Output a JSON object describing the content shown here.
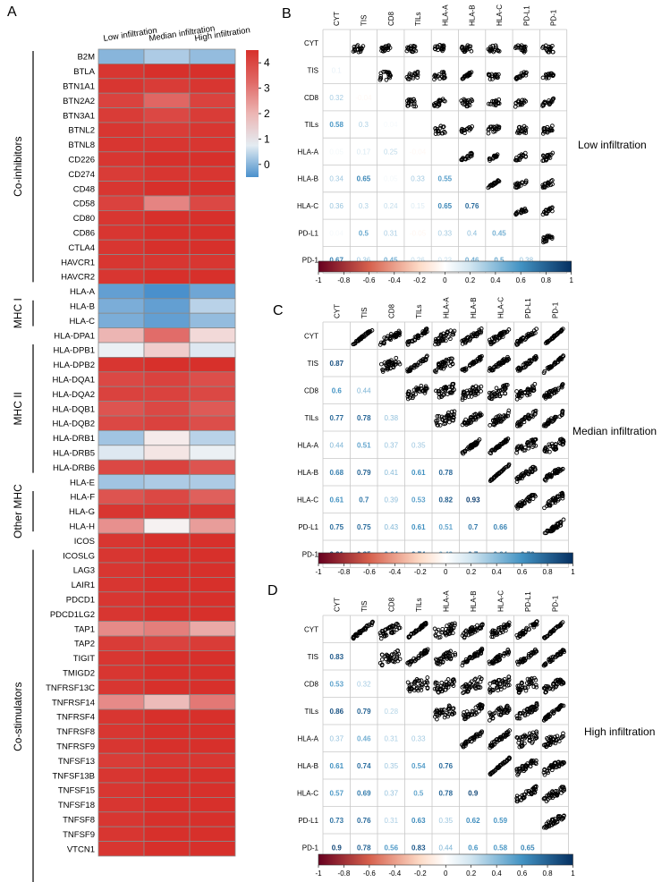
{
  "colors": {
    "negative": "#67001f",
    "neutral": "#ffffff",
    "positive": "#053061",
    "heat_low": "#4a90cc",
    "heat_mid": "#f7f7f7",
    "heat_high": "#d7302b",
    "points": "#000000"
  },
  "chart_data": [
    {
      "panel": "A",
      "type": "heatmap",
      "columns": [
        "Low infiltration",
        "Median infiltration",
        "High infiltration"
      ],
      "colorbar": {
        "ticks": [
          4,
          3,
          2,
          1,
          0
        ],
        "range": [
          -0.5,
          4.5
        ]
      },
      "groups": [
        {
          "label": "Co-inhibitors",
          "start": 0,
          "end": 16
        },
        {
          "label": "MHC I",
          "start": 17,
          "end": 19
        },
        {
          "label": "MHC II",
          "start": 20,
          "end": 29
        },
        {
          "label": "Other MHC",
          "start": 30,
          "end": 33
        },
        {
          "label": "Co-stimulators",
          "start": 34,
          "end": 57
        }
      ],
      "rows": [
        {
          "gene": "B2M",
          "values": [
            0.0,
            0.3,
            0.1
          ]
        },
        {
          "gene": "BTLA",
          "values": [
            4.1,
            4.2,
            4.2
          ]
        },
        {
          "gene": "BTN1A1",
          "values": [
            4.1,
            4.0,
            4.1
          ]
        },
        {
          "gene": "BTN2A2",
          "values": [
            3.9,
            3.3,
            3.9
          ]
        },
        {
          "gene": "BTN3A1",
          "values": [
            4.0,
            3.8,
            4.0
          ]
        },
        {
          "gene": "BTNL2",
          "values": [
            4.1,
            4.0,
            4.1
          ]
        },
        {
          "gene": "BTNL8",
          "values": [
            4.1,
            4.1,
            4.1
          ]
        },
        {
          "gene": "CD226",
          "values": [
            4.1,
            4.2,
            4.2
          ]
        },
        {
          "gene": "CD274",
          "values": [
            4.0,
            4.1,
            4.1
          ]
        },
        {
          "gene": "CD48",
          "values": [
            4.1,
            4.2,
            4.2
          ]
        },
        {
          "gene": "CD58",
          "values": [
            3.9,
            2.8,
            3.8
          ]
        },
        {
          "gene": "CD80",
          "values": [
            4.1,
            4.2,
            4.2
          ]
        },
        {
          "gene": "CD86",
          "values": [
            4.1,
            4.2,
            4.2
          ]
        },
        {
          "gene": "CTLA4",
          "values": [
            4.1,
            4.2,
            4.2
          ]
        },
        {
          "gene": "HAVCR1",
          "values": [
            4.1,
            4.1,
            4.1
          ]
        },
        {
          "gene": "HAVCR2",
          "values": [
            4.1,
            4.2,
            4.2
          ]
        },
        {
          "gene": "HLA-A",
          "values": [
            -0.3,
            -0.5,
            -0.2
          ]
        },
        {
          "gene": "HLA-B",
          "values": [
            -0.1,
            -0.3,
            0.4
          ]
        },
        {
          "gene": "HLA-C",
          "values": [
            -0.1,
            -0.3,
            0.1
          ]
        },
        {
          "gene": "HLA-DPA1",
          "values": [
            2.0,
            3.2,
            1.4
          ]
        },
        {
          "gene": "HLA-DPB1",
          "values": [
            0.8,
            1.6,
            0.7
          ]
        },
        {
          "gene": "HLA-DPB2",
          "values": [
            4.1,
            4.2,
            4.2
          ]
        },
        {
          "gene": "HLA-DQA1",
          "values": [
            3.8,
            3.9,
            3.7
          ]
        },
        {
          "gene": "HLA-DQA2",
          "values": [
            3.9,
            3.9,
            3.8
          ]
        },
        {
          "gene": "HLA-DQB1",
          "values": [
            3.6,
            3.8,
            3.5
          ]
        },
        {
          "gene": "HLA-DQB2",
          "values": [
            3.8,
            3.9,
            3.7
          ]
        },
        {
          "gene": "HLA-DRB1",
          "values": [
            0.2,
            1.1,
            0.4
          ]
        },
        {
          "gene": "HLA-DRB5",
          "values": [
            0.7,
            1.2,
            0.8
          ]
        },
        {
          "gene": "HLA-DRB6",
          "values": [
            3.8,
            3.9,
            3.6
          ]
        },
        {
          "gene": "HLA-E",
          "values": [
            0.2,
            0.3,
            0.3
          ]
        },
        {
          "gene": "HLA-F",
          "values": [
            3.6,
            3.8,
            3.4
          ]
        },
        {
          "gene": "HLA-G",
          "values": [
            4.1,
            4.1,
            4.1
          ]
        },
        {
          "gene": "HLA-H",
          "values": [
            2.6,
            1.0,
            2.4
          ]
        },
        {
          "gene": "ICOS",
          "values": [
            4.1,
            4.2,
            4.2
          ]
        },
        {
          "gene": "ICOSLG",
          "values": [
            4.1,
            4.2,
            4.2
          ]
        },
        {
          "gene": "LAG3",
          "values": [
            4.1,
            4.2,
            4.2
          ]
        },
        {
          "gene": "LAIR1",
          "values": [
            4.1,
            4.2,
            4.2
          ]
        },
        {
          "gene": "PDCD1",
          "values": [
            4.1,
            4.2,
            4.2
          ]
        },
        {
          "gene": "PDCD1LG2",
          "values": [
            4.1,
            4.2,
            4.2
          ]
        },
        {
          "gene": "TAP1",
          "values": [
            2.7,
            2.9,
            2.2
          ]
        },
        {
          "gene": "TAP2",
          "values": [
            4.0,
            3.9,
            4.0
          ]
        },
        {
          "gene": "TIGIT",
          "values": [
            4.1,
            4.2,
            4.2
          ]
        },
        {
          "gene": "TMIGD2",
          "values": [
            4.1,
            4.2,
            4.2
          ]
        },
        {
          "gene": "TNFRSF13C",
          "values": [
            4.1,
            4.2,
            4.2
          ]
        },
        {
          "gene": "TNFRSF14",
          "values": [
            2.7,
            1.9,
            3.0
          ]
        },
        {
          "gene": "TNFRSF4",
          "values": [
            4.1,
            4.2,
            4.2
          ]
        },
        {
          "gene": "TNFRSF8",
          "values": [
            4.1,
            4.2,
            4.2
          ]
        },
        {
          "gene": "TNFRSF9",
          "values": [
            4.1,
            4.2,
            4.2
          ]
        },
        {
          "gene": "TNFSF13",
          "values": [
            4.0,
            4.1,
            4.1
          ]
        },
        {
          "gene": "TNFSF13B",
          "values": [
            4.1,
            4.2,
            4.2
          ]
        },
        {
          "gene": "TNFSF15",
          "values": [
            4.1,
            4.2,
            4.2
          ]
        },
        {
          "gene": "TNFSF18",
          "values": [
            4.1,
            4.2,
            4.2
          ]
        },
        {
          "gene": "TNFSF8",
          "values": [
            4.1,
            4.2,
            4.2
          ]
        },
        {
          "gene": "TNFSF9",
          "values": [
            4.1,
            4.2,
            4.2
          ]
        },
        {
          "gene": "VTCN1",
          "values": [
            4.1,
            4.2,
            4.2
          ]
        }
      ]
    },
    {
      "panel": "B",
      "type": "scatter",
      "subtitle": "Low infiltration",
      "variables": [
        "CYT",
        "TIS",
        "CD8",
        "TILs",
        "HLA-A",
        "HLA-B",
        "HLA-C",
        "PD-L1",
        "PD-1"
      ],
      "correlations": [
        [
          0.1
        ],
        [
          0.32,
          -0.04
        ],
        [
          0.58,
          0.3,
          0.04
        ],
        [
          0.05,
          0.17,
          0.25,
          -0.04
        ],
        [
          0.34,
          0.65,
          0.05,
          0.33,
          0.55
        ],
        [
          0.36,
          0.3,
          0.24,
          0.15,
          0.65,
          0.76
        ],
        [
          0.04,
          0.5,
          0.31,
          -0.05,
          0.33,
          0.4,
          0.45
        ],
        [
          0.67,
          0.36,
          0.45,
          0.26,
          0.23,
          0.46,
          0.5,
          0.38
        ]
      ],
      "colorbar": {
        "ticks": [
          -1,
          -0.8,
          -0.6,
          -0.4,
          -0.2,
          0,
          0.2,
          0.4,
          0.6,
          0.8,
          1
        ],
        "range": [
          -1,
          1
        ]
      },
      "sparsity": 0.25
    },
    {
      "panel": "C",
      "type": "scatter",
      "subtitle": "Median infiltration",
      "variables": [
        "CYT",
        "TIS",
        "CD8",
        "TILs",
        "HLA-A",
        "HLA-B",
        "HLA-C",
        "PD-L1",
        "PD-1"
      ],
      "correlations": [
        [
          0.87
        ],
        [
          0.6,
          0.44
        ],
        [
          0.77,
          0.78,
          0.38
        ],
        [
          0.44,
          0.51,
          0.37,
          0.35
        ],
        [
          0.68,
          0.79,
          0.41,
          0.61,
          0.78
        ],
        [
          0.61,
          0.7,
          0.39,
          0.53,
          0.82,
          0.93
        ],
        [
          0.75,
          0.75,
          0.43,
          0.61,
          0.51,
          0.7,
          0.66
        ],
        [
          0.91,
          0.85,
          0.64,
          0.74,
          0.49,
          0.7,
          0.64,
          0.72
        ]
      ],
      "colorbar": {
        "ticks": [
          -1,
          -0.8,
          -0.6,
          -0.4,
          -0.2,
          0,
          0.2,
          0.4,
          0.6,
          0.8,
          1
        ],
        "range": [
          -1,
          1
        ]
      },
      "sparsity": 0.85
    },
    {
      "panel": "D",
      "type": "scatter",
      "subtitle": "High infiltration",
      "variables": [
        "CYT",
        "TIS",
        "CD8",
        "TILs",
        "HLA-A",
        "HLA-B",
        "HLA-C",
        "PD-L1",
        "PD-1"
      ],
      "correlations": [
        [
          0.83
        ],
        [
          0.53,
          0.32
        ],
        [
          0.86,
          0.79,
          0.28
        ],
        [
          0.37,
          0.46,
          0.31,
          0.33
        ],
        [
          0.61,
          0.74,
          0.35,
          0.54,
          0.76
        ],
        [
          0.57,
          0.69,
          0.37,
          0.5,
          0.78,
          0.9
        ],
        [
          0.73,
          0.76,
          0.31,
          0.63,
          0.35,
          0.62,
          0.59
        ],
        [
          0.9,
          0.78,
          0.56,
          0.83,
          0.44,
          0.6,
          0.58,
          0.65
        ]
      ],
      "colorbar": {
        "ticks": [
          -1,
          -0.8,
          -0.6,
          -0.4,
          -0.2,
          0,
          0.2,
          0.4,
          0.6,
          0.8,
          1
        ],
        "range": [
          -1,
          1
        ]
      },
      "sparsity": 0.9
    }
  ]
}
